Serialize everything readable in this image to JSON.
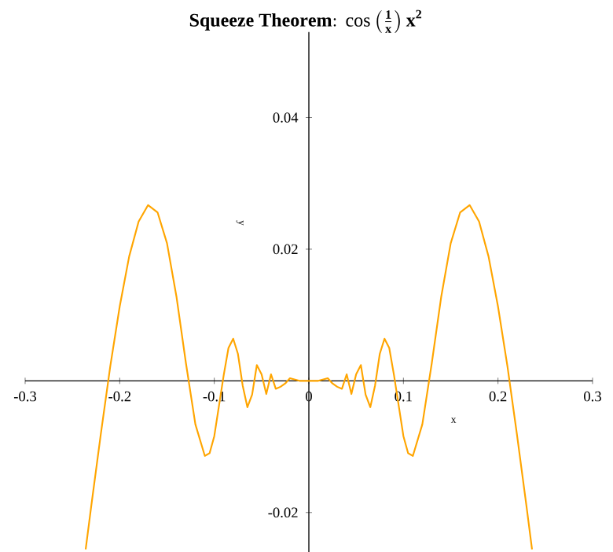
{
  "chart_data": {
    "type": "line",
    "title": "\\mathbf{Squeeze\\ Theorem{:}\\ \\cos\\left(\\frac{1}{x}\\right) x^{2}}",
    "xlabel": "x",
    "ylabel": "y",
    "x": [
      -0.236,
      -0.23,
      -0.22,
      -0.21,
      -0.2,
      -0.19,
      -0.18,
      -0.17,
      -0.16,
      -0.15,
      -0.14,
      -0.13,
      -0.12,
      -0.11,
      -0.105,
      -0.1,
      -0.09,
      -0.085,
      -0.08,
      -0.075,
      -0.07,
      -0.065,
      -0.06,
      -0.055,
      -0.05,
      -0.045,
      -0.04,
      -0.035,
      -0.03,
      -0.025,
      -0.02,
      -0.01,
      0,
      0.01,
      0.02,
      0.025,
      0.03,
      0.035,
      0.04,
      0.045,
      0.05,
      0.055,
      0.06,
      0.065,
      0.07,
      0.075,
      0.08,
      0.085,
      0.09,
      0.1,
      0.105,
      0.11,
      0.12,
      0.13,
      0.14,
      0.15,
      0.16,
      0.17,
      0.18,
      0.19,
      0.2,
      0.21,
      0.22,
      0.23,
      0.236
    ],
    "series": [
      {
        "color": "#ffa500",
        "values": [
          -0.0256,
          -0.0189,
          -0.0081,
          0.0022,
          0.0113,
          0.0189,
          0.0242,
          0.0267,
          0.0256,
          0.0209,
          0.0128,
          0.0027,
          -0.0066,
          -0.0114,
          -0.011,
          -0.0084,
          0.0009,
          0.005,
          0.0064,
          0.0041,
          -0.0007,
          -0.004,
          -0.0021,
          0.0024,
          0.001,
          -0.002,
          0.001,
          -0.0012,
          -0.0009,
          -0.0004,
          0.0004,
          0,
          0,
          0,
          0.0004,
          -0.0004,
          -0.0009,
          -0.0012,
          0.001,
          -0.002,
          0.001,
          0.0024,
          -0.0021,
          -0.004,
          -0.0007,
          0.0041,
          0.0064,
          0.005,
          0.0009,
          -0.0084,
          -0.011,
          -0.0114,
          -0.0066,
          0.0027,
          0.0128,
          0.0209,
          0.0256,
          0.0267,
          0.0242,
          0.0189,
          0.0113,
          0.0022,
          -0.0081,
          -0.0189,
          -0.0256
        ]
      }
    ],
    "xlim": [
      -0.3,
      0.3
    ],
    "ylim": [
      -0.026,
      0.053
    ],
    "xticks": [
      {
        "value": -0.3,
        "label": "-0.3"
      },
      {
        "value": -0.2,
        "label": "-0.2"
      },
      {
        "value": -0.1,
        "label": "-0.1"
      },
      0,
      0.1,
      0.2,
      0.3
    ],
    "yticks": [
      {
        "value": -0.02,
        "label": "-0.02"
      },
      0.02,
      0.04
    ],
    "marker": "none",
    "line_style": "solid"
  }
}
